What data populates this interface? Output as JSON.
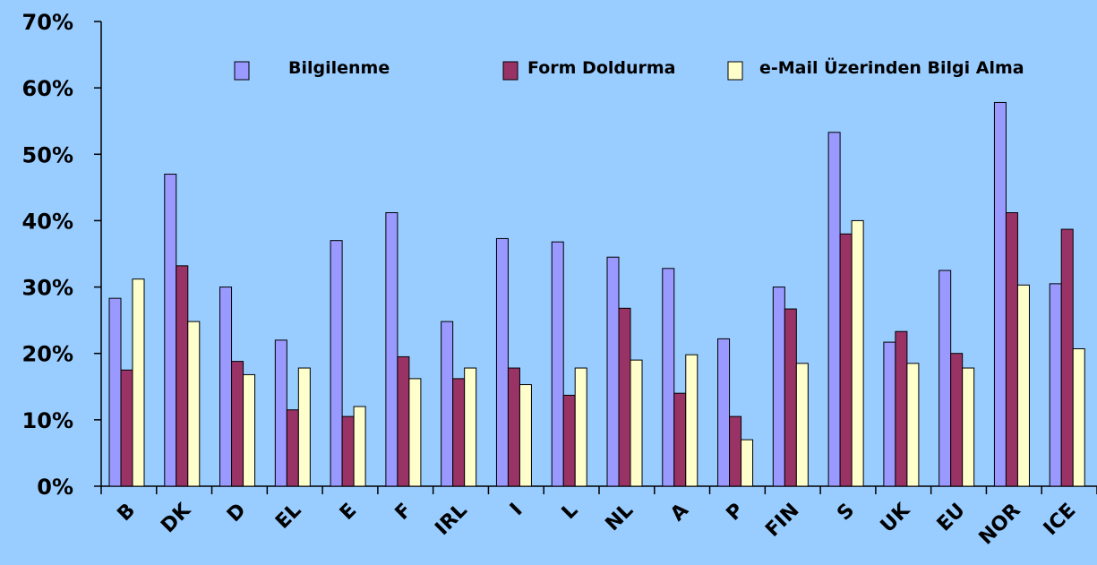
{
  "chart_data": {
    "type": "bar",
    "categories": [
      "B",
      "DK",
      "D",
      "EL",
      "E",
      "F",
      "IRL",
      "I",
      "L",
      "NL",
      "A",
      "P",
      "FIN",
      "S",
      "UK",
      "EU",
      "NOR",
      "ICE"
    ],
    "series": [
      {
        "name": "Bilgilenme",
        "color": "#9999ff",
        "values": [
          28.3,
          47,
          30,
          22,
          37,
          41.2,
          24.8,
          37.3,
          36.8,
          34.5,
          32.8,
          22.2,
          30,
          53.3,
          21.7,
          32.5,
          57.8,
          30.5
        ]
      },
      {
        "name": "Form Doldurma",
        "color": "#993366",
        "values": [
          17.5,
          33.2,
          18.8,
          11.5,
          10.5,
          19.5,
          16.2,
          17.8,
          13.7,
          26.8,
          14,
          10.5,
          26.7,
          38,
          23.3,
          20,
          41.2,
          38.7
        ]
      },
      {
        "name": "e-Mail Üzerinden Bilgi Alma",
        "color": "#ffffcc",
        "values": [
          31.2,
          24.8,
          16.8,
          17.8,
          12,
          16.2,
          17.8,
          15.3,
          17.8,
          19,
          19.8,
          7,
          18.5,
          40,
          18.5,
          17.8,
          30.3,
          20.7
        ]
      }
    ],
    "ylim": [
      0,
      70
    ],
    "yticks": [
      "0%",
      "10%",
      "20%",
      "30%",
      "40%",
      "50%",
      "60%",
      "70%"
    ],
    "grid": false,
    "legend_position": "top"
  },
  "colors": {
    "background": "#99ccff"
  }
}
